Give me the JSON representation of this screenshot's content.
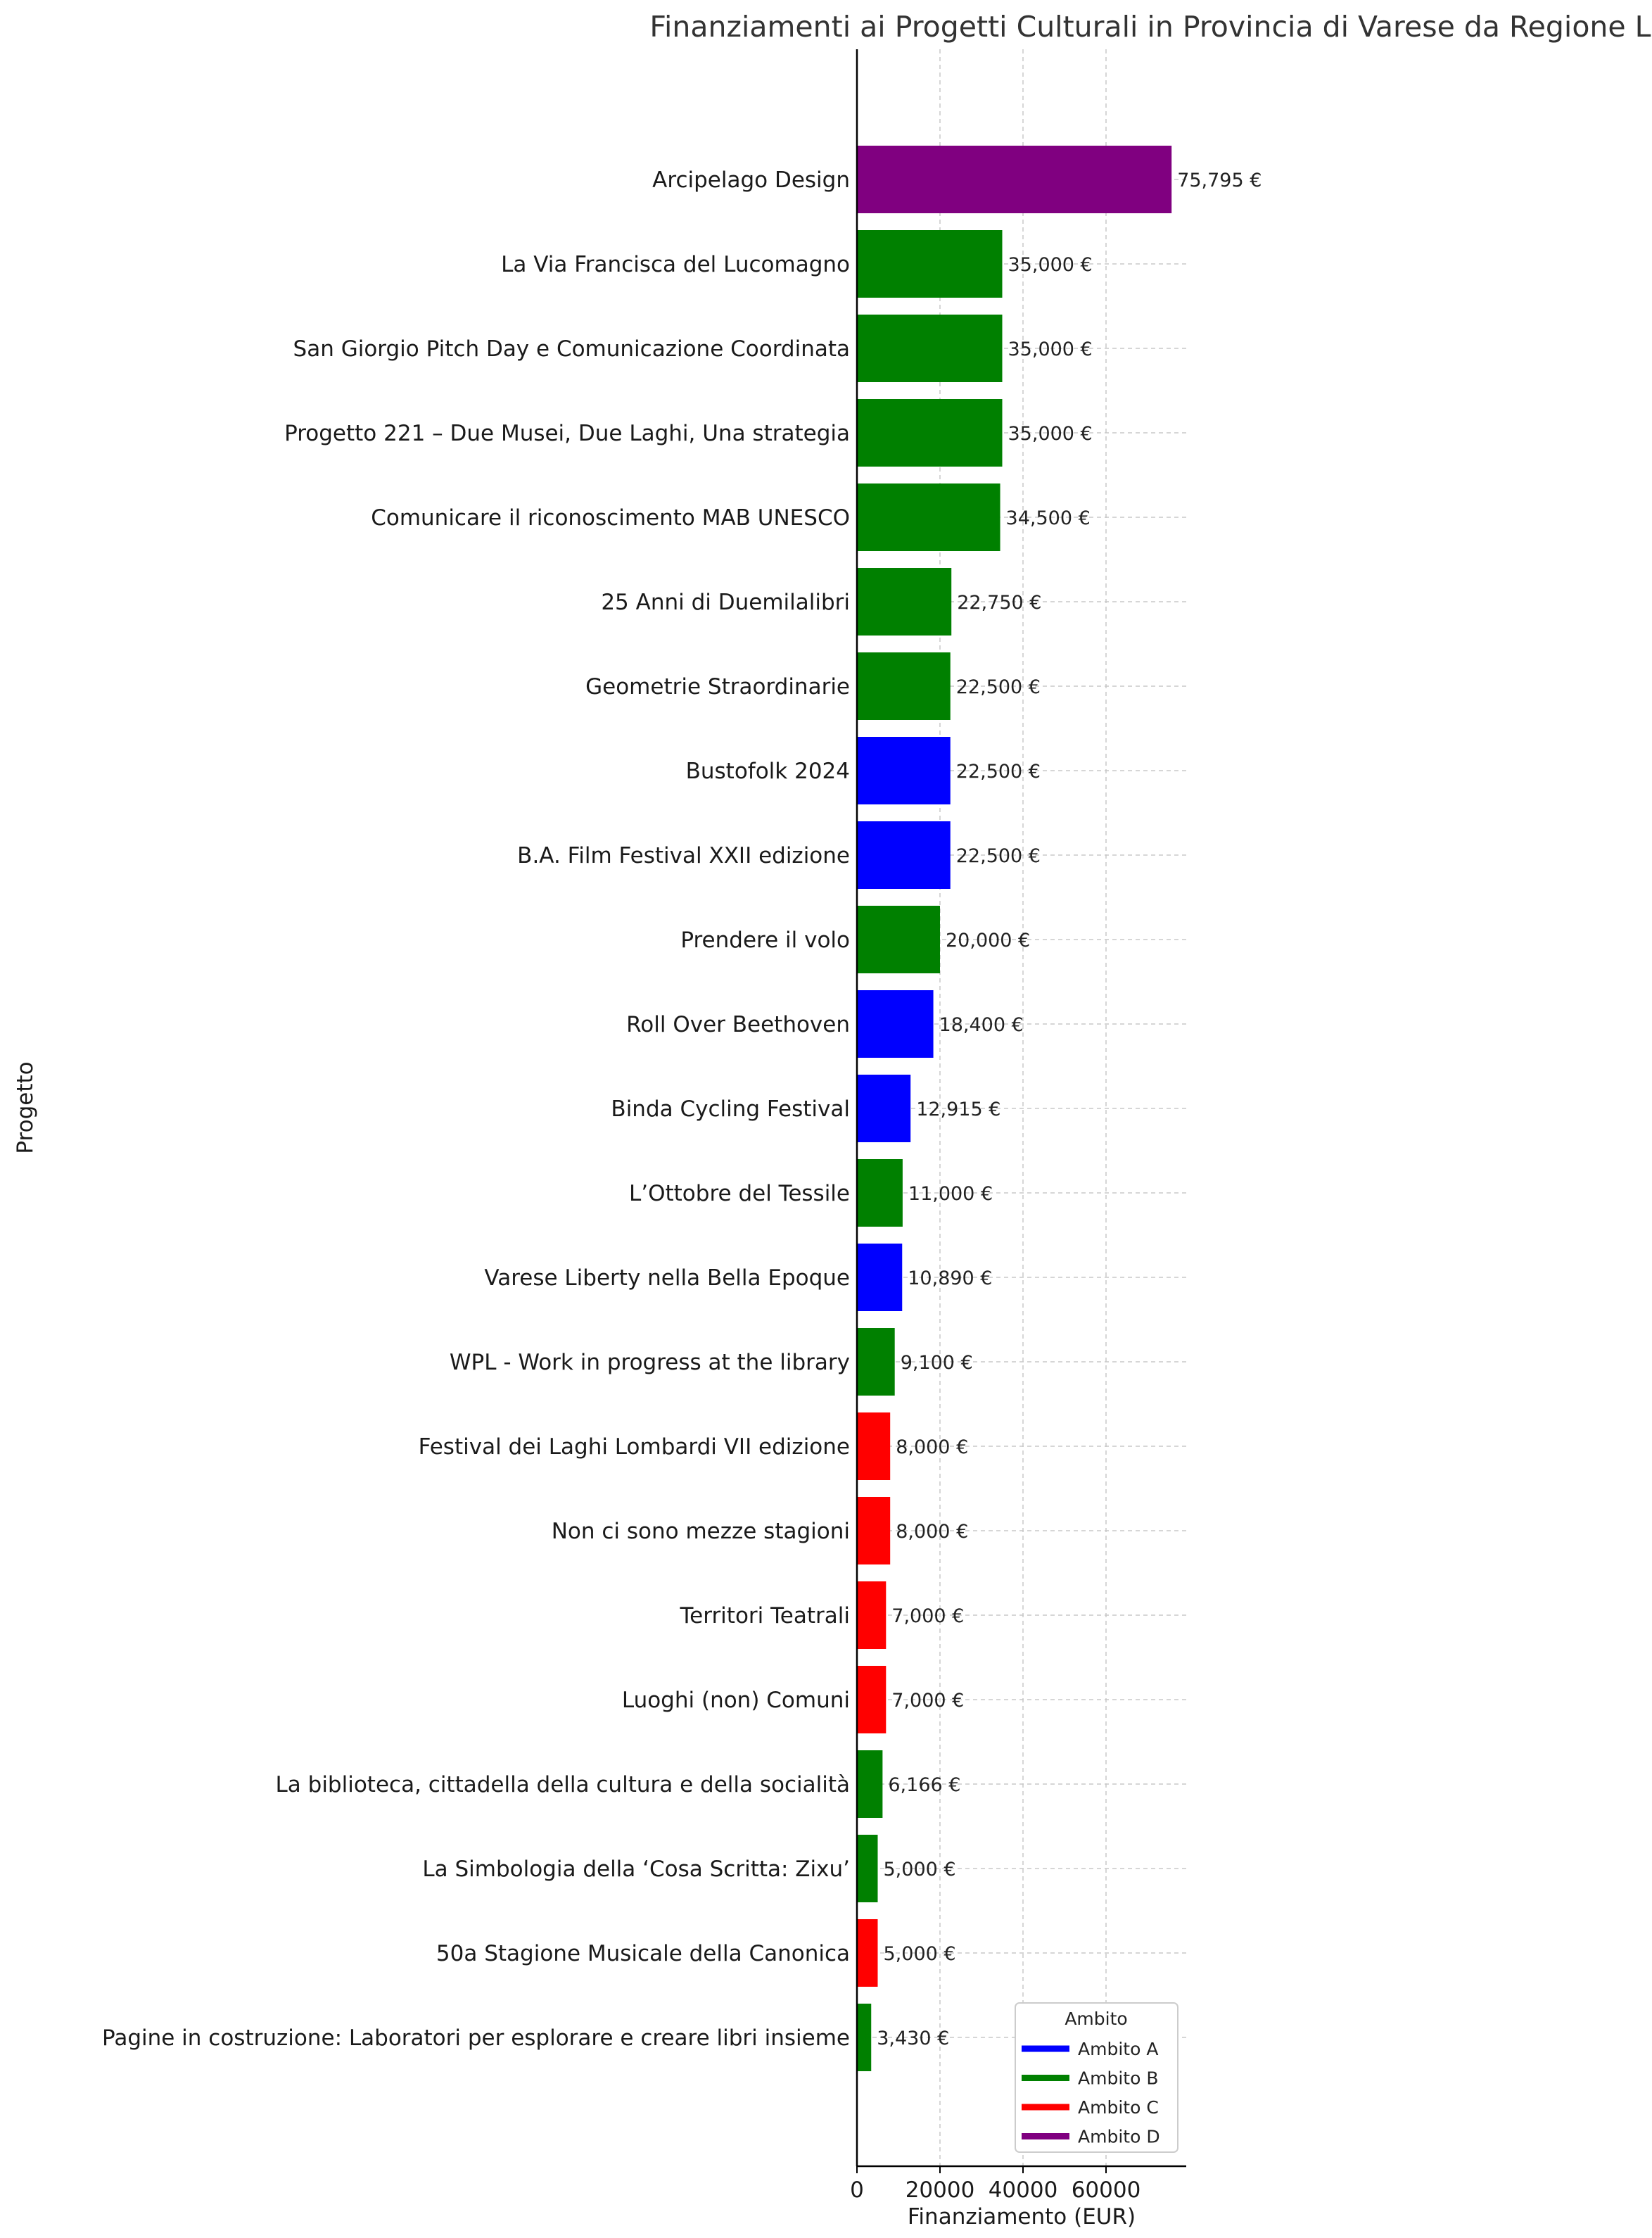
{
  "chart_data": {
    "type": "bar",
    "orientation": "horizontal",
    "title": "Finanziamenti ai Progetti Culturali in Provincia di Varese da Regione Lombardia",
    "xlabel": "Finanziamento (EUR)",
    "ylabel": "Progetto",
    "xlim": [
      0,
      80000
    ],
    "xticks": [
      0,
      20000,
      40000,
      60000
    ],
    "grid": true,
    "legend_title": "Ambito",
    "legend_position": "lower-right",
    "legend": [
      {
        "name": "Ambito A",
        "color": "#0000ff"
      },
      {
        "name": "Ambito B",
        "color": "#008000"
      },
      {
        "name": "Ambito C",
        "color": "#ff0000"
      },
      {
        "name": "Ambito D",
        "color": "#800080"
      }
    ],
    "bars": [
      {
        "label": "Arcipelago Design",
        "value": 75795,
        "value_label": "75,795 €",
        "ambito": "Ambito D"
      },
      {
        "label": "La Via Francisca del Lucomagno",
        "value": 35000,
        "value_label": "35,000 €",
        "ambito": "Ambito B"
      },
      {
        "label": "San Giorgio Pitch Day e Comunicazione Coordinata",
        "value": 35000,
        "value_label": "35,000 €",
        "ambito": "Ambito B"
      },
      {
        "label": "Progetto 221 – Due Musei, Due Laghi, Una strategia",
        "value": 35000,
        "value_label": "35,000 €",
        "ambito": "Ambito B"
      },
      {
        "label": "Comunicare il riconoscimento MAB UNESCO",
        "value": 34500,
        "value_label": "34,500 €",
        "ambito": "Ambito B"
      },
      {
        "label": "25 Anni di Duemilalibri",
        "value": 22750,
        "value_label": "22,750 €",
        "ambito": "Ambito B"
      },
      {
        "label": "Geometrie Straordinarie",
        "value": 22500,
        "value_label": "22,500 €",
        "ambito": "Ambito B"
      },
      {
        "label": "Bustofolk 2024",
        "value": 22500,
        "value_label": "22,500 €",
        "ambito": "Ambito A"
      },
      {
        "label": "B.A. Film Festival XXII edizione",
        "value": 22500,
        "value_label": "22,500 €",
        "ambito": "Ambito A"
      },
      {
        "label": "Prendere il volo",
        "value": 20000,
        "value_label": "20,000 €",
        "ambito": "Ambito B"
      },
      {
        "label": "Roll Over Beethoven",
        "value": 18400,
        "value_label": "18,400 €",
        "ambito": "Ambito A"
      },
      {
        "label": "Binda Cycling Festival",
        "value": 12915,
        "value_label": "12,915 €",
        "ambito": "Ambito A"
      },
      {
        "label": "L’Ottobre del Tessile",
        "value": 11000,
        "value_label": "11,000 €",
        "ambito": "Ambito B"
      },
      {
        "label": "Varese Liberty nella Bella Epoque",
        "value": 10890,
        "value_label": "10,890 €",
        "ambito": "Ambito A"
      },
      {
        "label": "WPL - Work in progress at the library",
        "value": 9100,
        "value_label": "9,100 €",
        "ambito": "Ambito B"
      },
      {
        "label": "Festival dei Laghi Lombardi VII edizione",
        "value": 8000,
        "value_label": "8,000 €",
        "ambito": "Ambito C"
      },
      {
        "label": "Non ci sono mezze stagioni",
        "value": 8000,
        "value_label": "8,000 €",
        "ambito": "Ambito C"
      },
      {
        "label": "Territori Teatrali",
        "value": 7000,
        "value_label": "7,000 €",
        "ambito": "Ambito C"
      },
      {
        "label": "Luoghi (non) Comuni",
        "value": 7000,
        "value_label": "7,000 €",
        "ambito": "Ambito C"
      },
      {
        "label": "La biblioteca, cittadella della cultura e della socialità",
        "value": 6166,
        "value_label": "6,166 €",
        "ambito": "Ambito B"
      },
      {
        "label": "La Simbologia della ‘Cosa Scritta: Zixu’",
        "value": 5000,
        "value_label": "5,000 €",
        "ambito": "Ambito B"
      },
      {
        "label": "50a Stagione Musicale della Canonica",
        "value": 5000,
        "value_label": "5,000 €",
        "ambito": "Ambito C"
      },
      {
        "label": "Pagine in costruzione: Laboratori per esplorare e creare libri insieme",
        "value": 3430,
        "value_label": "3,430 €",
        "ambito": "Ambito B"
      }
    ]
  }
}
